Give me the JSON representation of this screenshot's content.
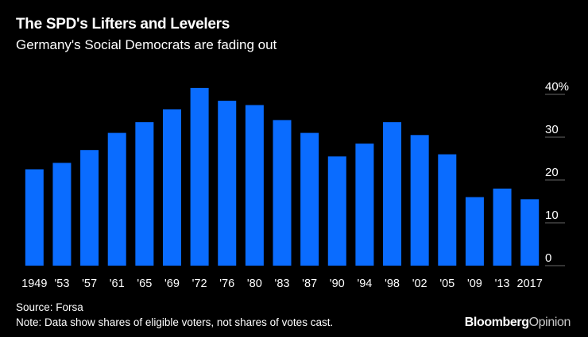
{
  "title": "The SPD's Lifters and Levelers",
  "subtitle": "Germany's Social Democrats are fading out",
  "source": "Source: Forsa",
  "note": "Note: Data show shares of eligible voters, not shares of votes cast.",
  "brand": {
    "primary": "Bloomberg",
    "secondary": "Opinion"
  },
  "colors": {
    "bar": "#0a6cff",
    "background": "#000000",
    "text": "#ffffff",
    "gridline": "#666666"
  },
  "chart_data": {
    "type": "bar",
    "title": "The SPD's Lifters and Levelers",
    "xlabel": "",
    "ylabel": "",
    "ylim": [
      0,
      40
    ],
    "y_ticks": [
      "0",
      "10",
      "20",
      "30",
      "40%"
    ],
    "y_axis_position": "right",
    "categories": [
      "1949",
      "'53",
      "'57",
      "'61",
      "'65",
      "'69",
      "'72",
      "'76",
      "'80",
      "'83",
      "'87",
      "'90",
      "'94",
      "'98",
      "'02",
      "'05",
      "'09",
      "'13",
      "2017"
    ],
    "values": [
      22.5,
      24,
      27,
      31,
      33.5,
      36.5,
      41.5,
      38.5,
      37.5,
      34,
      31,
      25.5,
      28.5,
      33.5,
      30.5,
      26,
      16,
      18,
      15.5
    ]
  }
}
